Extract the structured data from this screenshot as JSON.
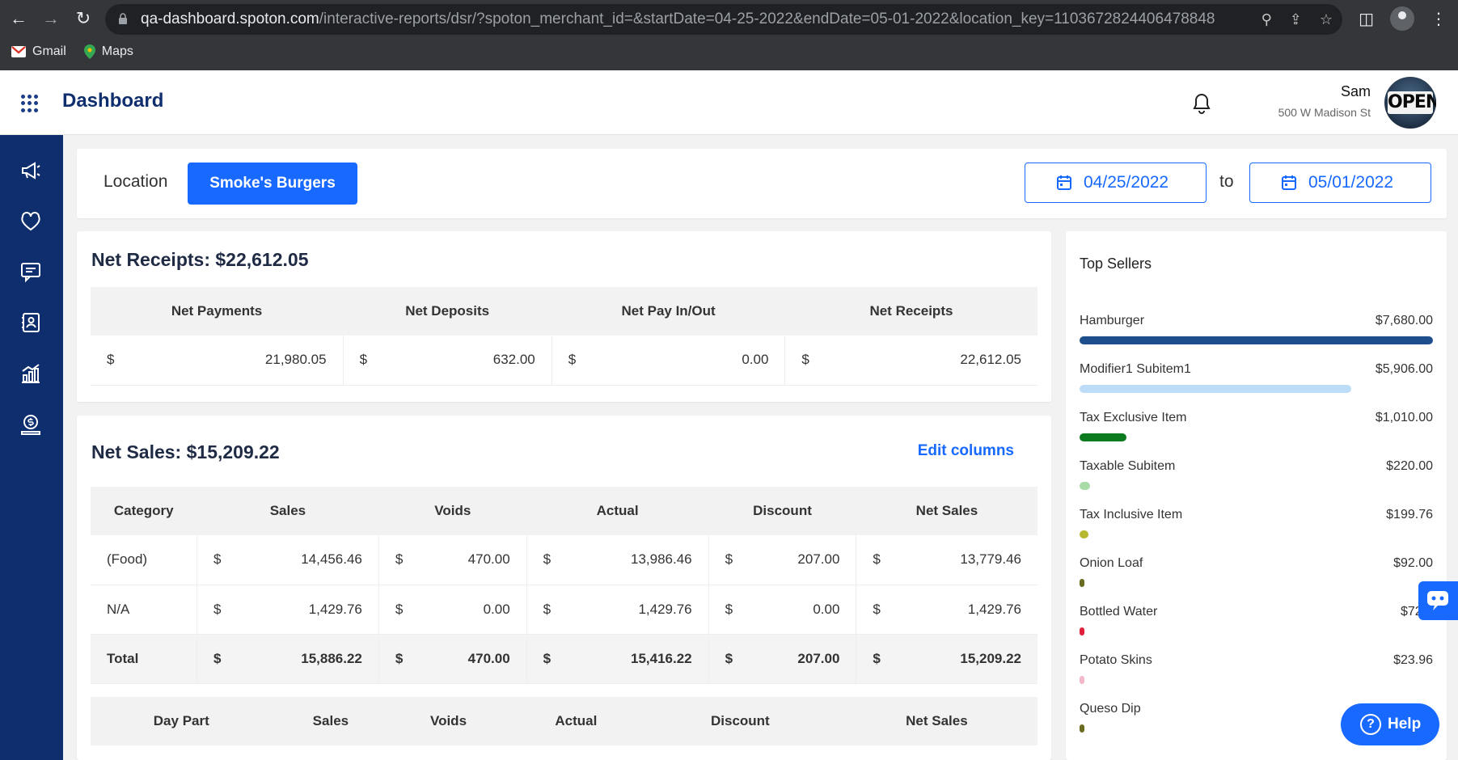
{
  "browser": {
    "url_host": "qa-dashboard.spoton.com",
    "url_path": "/interactive-reports/dsr/?spoton_merchant_id=&startDate=04-25-2022&endDate=05-01-2022&location_key=1103672824406478848",
    "bookmarks": [
      {
        "label": "Gmail",
        "icon": "gmail-icon"
      },
      {
        "label": "Maps",
        "icon": "maps-icon"
      }
    ]
  },
  "header": {
    "title": "Dashboard",
    "user_name": "Sam",
    "user_address": "500 W Madison St",
    "avatar_text": "OPEN"
  },
  "sidebar": {
    "items": [
      {
        "icon": "megaphone-icon"
      },
      {
        "icon": "heart-icon"
      },
      {
        "icon": "chat-icon"
      },
      {
        "icon": "contacts-icon"
      },
      {
        "icon": "chart-icon"
      },
      {
        "icon": "money-icon"
      }
    ]
  },
  "filters": {
    "location_label": "Location",
    "location_value": "Smoke's Burgers",
    "start_date": "04/25/2022",
    "to_label": "to",
    "end_date": "05/01/2022"
  },
  "receipts": {
    "title": "Net Receipts: $22,612.05",
    "columns": [
      "Net Payments",
      "Net Deposits",
      "Net Pay In/Out",
      "Net Receipts"
    ],
    "currency": "$",
    "values": [
      "21,980.05",
      "632.00",
      "0.00",
      "22,612.05"
    ]
  },
  "sales": {
    "title": "Net Sales: $15,209.22",
    "edit_columns": "Edit columns",
    "columns": [
      "Category",
      "Sales",
      "Voids",
      "Actual",
      "Discount",
      "Net Sales"
    ],
    "currency": "$",
    "rows": [
      {
        "label": "(Food)",
        "values": [
          "14,456.46",
          "470.00",
          "13,986.46",
          "207.00",
          "13,779.46"
        ]
      },
      {
        "label": "N/A",
        "values": [
          "1,429.76",
          "0.00",
          "1,429.76",
          "0.00",
          "1,429.76"
        ]
      }
    ],
    "total": {
      "label": "Total",
      "values": [
        "15,886.22",
        "470.00",
        "15,416.22",
        "207.00",
        "15,209.22"
      ]
    },
    "daypart_columns": [
      "Day Part",
      "Sales",
      "Voids",
      "Actual",
      "Discount",
      "Net Sales"
    ]
  },
  "top_sellers": {
    "title": "Top Sellers",
    "items": [
      {
        "name": "Hamburger",
        "value": "$7,680.00",
        "share": 1.0,
        "color": "#1f4e8c"
      },
      {
        "name": "Modifier1 Subitem1",
        "value": "$5,906.00",
        "share": 0.769,
        "color": "#bcdcf7"
      },
      {
        "name": "Tax Exclusive Item",
        "value": "$1,010.00",
        "share": 0.132,
        "color": "#0c7a1e"
      },
      {
        "name": "Taxable Subitem",
        "value": "$220.00",
        "share": 0.029,
        "color": "#a8dba8"
      },
      {
        "name": "Tax Inclusive Item",
        "value": "$199.76",
        "share": 0.026,
        "color": "#b8b830"
      },
      {
        "name": "Onion Loaf",
        "value": "$92.00",
        "share": 0.012,
        "color": "#6b6b20"
      },
      {
        "name": "Bottled Water",
        "value": "$72.0",
        "share": 0.009,
        "color": "#e0203a"
      },
      {
        "name": "Potato Skins",
        "value": "$23.96",
        "share": 0.003,
        "color": "#f4b8c8"
      },
      {
        "name": "Queso Dip",
        "value": "",
        "share": 0.003,
        "color": "#6b6b20"
      }
    ]
  },
  "help": {
    "label": "Help"
  }
}
